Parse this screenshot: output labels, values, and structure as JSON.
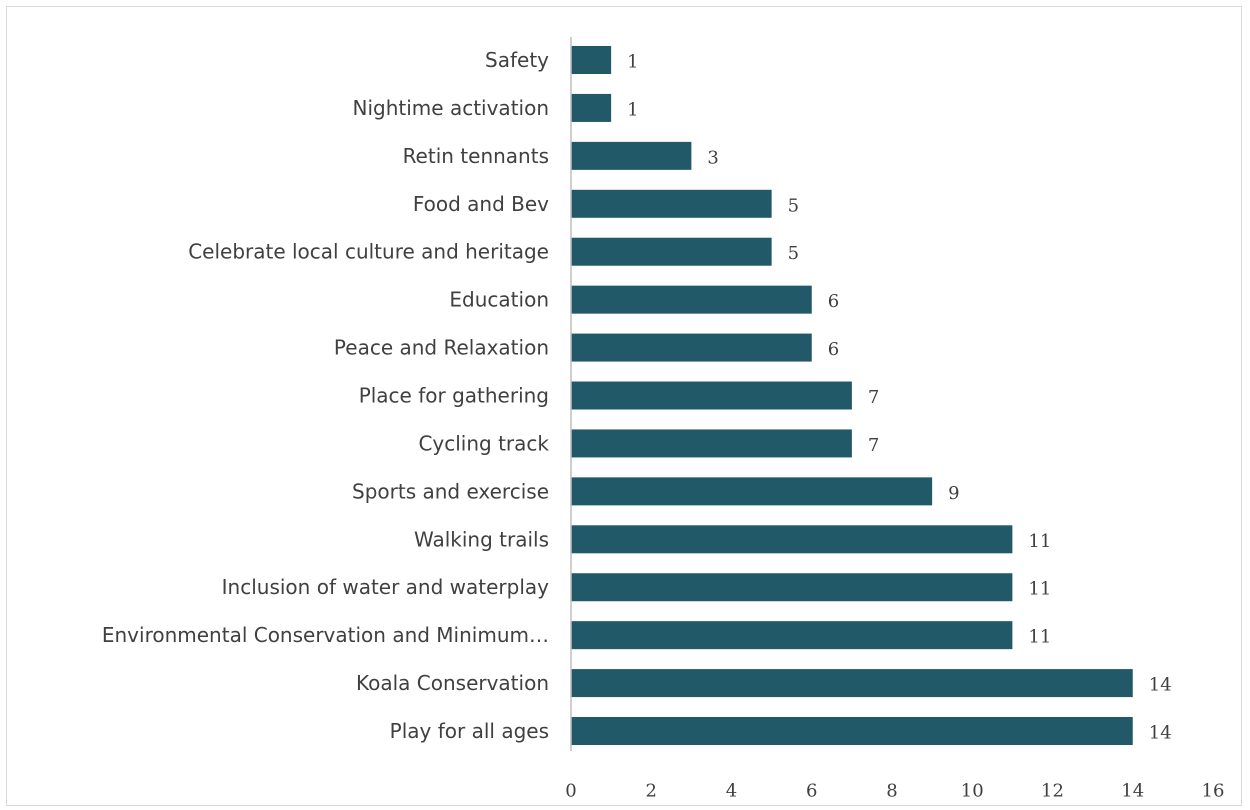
{
  "chart_data": {
    "type": "bar",
    "orientation": "horizontal",
    "categories": [
      "Safety",
      "Nightime activation",
      "Retin tennants ",
      "Food and Bev",
      "Celebrate local culture and heritage",
      "Education",
      "Peace and Relaxation",
      "Place for gathering",
      "Cycling track",
      "Sports and exercise",
      "Walking trails",
      "Inclusion of water and waterplay",
      "Environmental Conservation and Minimum…",
      "Koala Conservation",
      "Play for all ages"
    ],
    "values": [
      1,
      1,
      3,
      5,
      5,
      6,
      6,
      7,
      7,
      9,
      11,
      11,
      11,
      14,
      14
    ],
    "data_labels": [
      "1",
      "1",
      "3",
      "5",
      "5",
      "6",
      "6",
      "7",
      "7",
      "9",
      "11",
      "11",
      "11",
      "14",
      "14"
    ],
    "xlim": [
      0,
      16
    ],
    "xticks": [
      "0",
      "2",
      "4",
      "6",
      "8",
      "10",
      "12",
      "14",
      "16"
    ],
    "title": "",
    "xlabel": "",
    "ylabel": "",
    "grid": false,
    "legend": "none",
    "bar_color": "#215968",
    "axis_color": "#bfbfbf",
    "text_color": "#404040"
  }
}
